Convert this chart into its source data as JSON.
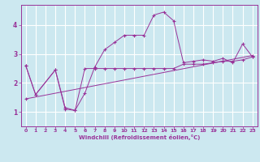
{
  "xlabel": "Windchill (Refroidissement éolien,°C)",
  "background_color": "#cce8f0",
  "grid_color": "#ffffff",
  "line_color": "#993399",
  "xlim": [
    -0.5,
    23.5
  ],
  "ylim": [
    0.5,
    4.7
  ],
  "yticks": [
    1,
    2,
    3,
    4
  ],
  "xticks": [
    0,
    1,
    2,
    3,
    4,
    5,
    6,
    7,
    8,
    9,
    10,
    11,
    12,
    13,
    14,
    15,
    16,
    17,
    18,
    19,
    20,
    21,
    22,
    23
  ],
  "series": [
    {
      "x": [
        0,
        1,
        3,
        4,
        5,
        6,
        7,
        8,
        9,
        10,
        11,
        12,
        13,
        14,
        15,
        16,
        17,
        18,
        19,
        20,
        21,
        22,
        23
      ],
      "y": [
        2.6,
        1.6,
        2.45,
        1.15,
        1.05,
        1.65,
        2.55,
        3.15,
        3.4,
        3.65,
        3.65,
        3.65,
        4.35,
        4.45,
        4.15,
        2.7,
        2.75,
        2.8,
        2.75,
        2.85,
        2.7,
        3.35,
        2.9
      ]
    },
    {
      "x": [
        0,
        1,
        3,
        4,
        5,
        6,
        7,
        8,
        9,
        10,
        11,
        12,
        13,
        14,
        15,
        16,
        17,
        18,
        19,
        20,
        21,
        22,
        23
      ],
      "y": [
        2.6,
        1.6,
        2.45,
        1.1,
        1.05,
        2.5,
        2.5,
        2.5,
        2.5,
        2.5,
        2.5,
        2.5,
        2.5,
        2.5,
        2.5,
        2.65,
        2.65,
        2.65,
        2.7,
        2.75,
        2.75,
        2.8,
        2.9
      ]
    },
    {
      "x": [
        0,
        23
      ],
      "y": [
        1.45,
        2.95
      ]
    }
  ]
}
